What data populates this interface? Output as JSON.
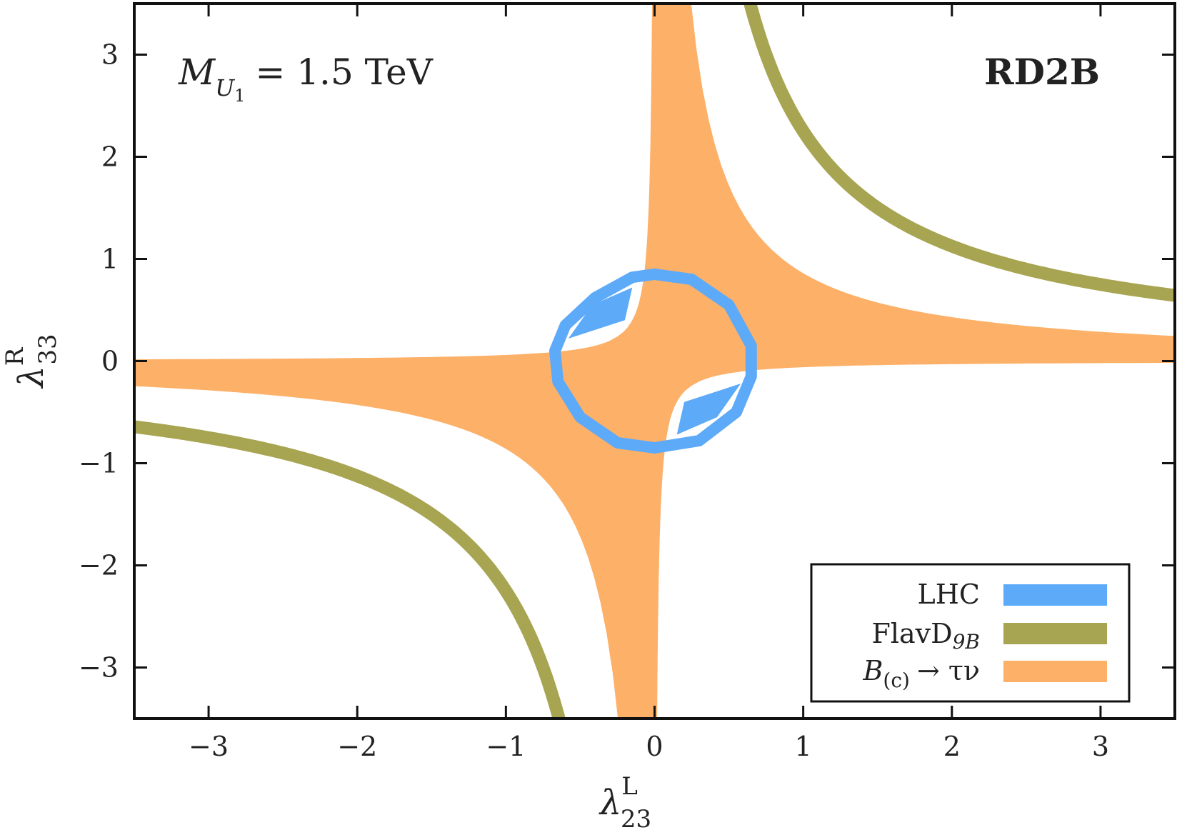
{
  "chart_data": {
    "type": "area",
    "xlabel": "λ23L",
    "xlabel_parts": {
      "base": "λ",
      "sup": "L",
      "sub": "23"
    },
    "ylabel": "λ33R",
    "ylabel_parts": {
      "base": "λ",
      "sup": "R",
      "sub": "33"
    },
    "xlim": [
      -3.5,
      3.5
    ],
    "ylim": [
      -3.5,
      3.5
    ],
    "xticks": [
      -3,
      -2,
      -1,
      0,
      1,
      2,
      3
    ],
    "yticks": [
      -3,
      -2,
      -1,
      0,
      1,
      2,
      3
    ],
    "xtick_labels": [
      "−3",
      "−2",
      "−1",
      "0",
      "1",
      "2",
      "3"
    ],
    "ytick_labels": [
      "−3",
      "−2",
      "−1",
      "0",
      "1",
      "2",
      "3"
    ],
    "grid": false,
    "legend_position": "bottom-right",
    "annotations": {
      "mass": {
        "text_M": "M",
        "text_sub": "U",
        "text_subsub": "1",
        "text_rest": "= 1.5 TeV"
      },
      "label": "RD2B"
    },
    "series": [
      {
        "name": "LHC",
        "label_text": "LHC",
        "color": "#5daaf9",
        "shape": "ring",
        "points_upper": [
          [
            -0.67,
            0.1
          ],
          [
            -0.6,
            0.35
          ],
          [
            -0.4,
            0.62
          ],
          [
            -0.15,
            0.82
          ],
          [
            0.0,
            0.85
          ],
          [
            0.25,
            0.8
          ],
          [
            0.5,
            0.55
          ],
          [
            0.65,
            0.15
          ],
          [
            0.65,
            -0.15
          ]
        ],
        "points_lower": [
          [
            0.65,
            -0.15
          ],
          [
            0.55,
            -0.5
          ],
          [
            0.3,
            -0.78
          ],
          [
            0.0,
            -0.85
          ],
          [
            -0.25,
            -0.8
          ],
          [
            -0.5,
            -0.55
          ],
          [
            -0.65,
            -0.2
          ],
          [
            -0.67,
            0.1
          ]
        ],
        "overlap_regions": [
          [
            [
              -0.58,
              0.22
            ],
            [
              -0.42,
              0.55
            ],
            [
              -0.15,
              0.72
            ],
            [
              -0.2,
              0.4
            ]
          ],
          [
            [
              0.58,
              -0.22
            ],
            [
              0.42,
              -0.55
            ],
            [
              0.15,
              -0.72
            ],
            [
              0.2,
              -0.4
            ]
          ]
        ]
      },
      {
        "name": "FlavD9B",
        "label_text": "FlavD",
        "label_sub": "9B",
        "color": "#a8a552",
        "shape": "hyperbola",
        "product": 2.25
      },
      {
        "name": "B(c) → τν",
        "label_text": "B",
        "label_sub": "(c)",
        "label_rest": "→ τν",
        "color": "#fdb068",
        "shape": "hyperbolic-band",
        "inner_product": 0.06,
        "outer_product": 0.86,
        "points": [
          [
            -3.5,
            0.05
          ],
          [
            -1.0,
            0.1
          ],
          [
            -0.3,
            0.3
          ],
          [
            -0.15,
            1.0
          ],
          [
            -0.08,
            3.5
          ],
          [
            0.32,
            3.5
          ],
          [
            0.5,
            1.8
          ],
          [
            1.0,
            0.9
          ],
          [
            2.0,
            0.42
          ],
          [
            3.5,
            0.28
          ],
          [
            3.5,
            -0.05
          ],
          [
            1.0,
            -0.1
          ],
          [
            0.3,
            -0.3
          ],
          [
            0.15,
            -1.0
          ],
          [
            0.08,
            -3.5
          ],
          [
            -0.32,
            -3.5
          ],
          [
            -0.5,
            -1.8
          ],
          [
            -1.0,
            -0.9
          ],
          [
            -2.0,
            -0.42
          ],
          [
            -3.5,
            -0.28
          ]
        ]
      }
    ]
  }
}
